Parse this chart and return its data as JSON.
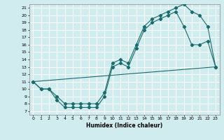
{
  "xlabel": "Humidex (Indice chaleur)",
  "bg_color": "#d0ecee",
  "grid_color": "#ffffff",
  "line_color": "#1a6b6b",
  "xlim": [
    -0.5,
    23.5
  ],
  "ylim": [
    6.5,
    21.5
  ],
  "yticks": [
    7,
    8,
    9,
    10,
    11,
    12,
    13,
    14,
    15,
    16,
    17,
    18,
    19,
    20,
    21
  ],
  "xticks": [
    0,
    1,
    2,
    3,
    4,
    5,
    6,
    7,
    8,
    9,
    10,
    11,
    12,
    13,
    14,
    15,
    16,
    17,
    18,
    19,
    20,
    21,
    22,
    23
  ],
  "line_upper": {
    "x": [
      0,
      1,
      2,
      3,
      4,
      5,
      6,
      7,
      8,
      9,
      10,
      11,
      12,
      13,
      14,
      15,
      16,
      17,
      18,
      19,
      20,
      21,
      22,
      23
    ],
    "y": [
      11,
      10,
      10,
      9,
      8,
      8,
      8,
      8,
      8,
      9.5,
      13.5,
      14,
      13.5,
      16,
      18.5,
      19.5,
      20,
      20.5,
      21,
      21.5,
      20.5,
      20,
      18.5,
      13
    ]
  },
  "line_lower": {
    "x": [
      0,
      1,
      2,
      3,
      4,
      5,
      6,
      7,
      8,
      9,
      10,
      11,
      12,
      13,
      14,
      15,
      16,
      17,
      18,
      19,
      20,
      21,
      22,
      23
    ],
    "y": [
      11,
      10,
      10,
      8.5,
      7.5,
      7.5,
      7.5,
      7.5,
      7.5,
      9,
      13,
      13.5,
      13,
      15.5,
      18,
      19,
      19.5,
      20,
      20.5,
      18.5,
      16,
      16,
      16.5,
      13
    ]
  },
  "line_diag": {
    "x": [
      0,
      23
    ],
    "y": [
      11,
      13
    ]
  }
}
